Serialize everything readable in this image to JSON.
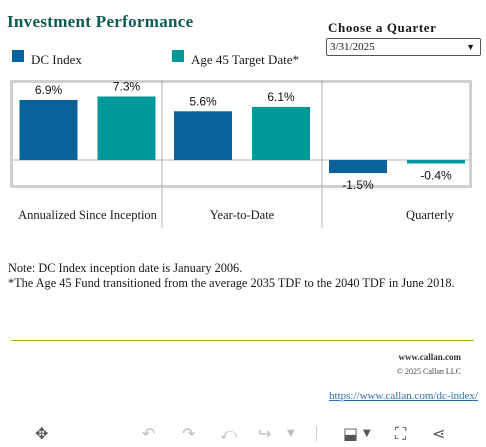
{
  "header": {
    "title": "Investment Performance",
    "quarter_label": "Choose a Quarter",
    "quarter_value": "3/31/2025"
  },
  "legend": [
    {
      "label": "DC Index",
      "color": "#0a629b"
    },
    {
      "label": "Age 45 Target Date*",
      "color": "#00999a"
    }
  ],
  "chart_data": {
    "type": "bar",
    "categories": [
      "Annualized Since Inception",
      "Year-to-Date",
      "Quarterly"
    ],
    "series": [
      {
        "name": "DC Index",
        "values": [
          6.9,
          5.6,
          -1.5
        ],
        "color": "#0a629b"
      },
      {
        "name": "Age 45 Target Date*",
        "values": [
          7.3,
          6.1,
          -0.4
        ],
        "color": "#00999a"
      }
    ],
    "data_labels": [
      [
        "6.9%",
        "5.6%",
        "-1.5%"
      ],
      [
        "7.3%",
        "6.1%",
        "-0.4%"
      ]
    ],
    "ylim": [
      -2.5,
      10.0
    ],
    "grid": false,
    "legend_position": "top-left"
  },
  "notes": {
    "line1": "Note: DC Index inception date is January 2006.",
    "line2": "*The Age 45 Fund transitioned from the average 2035 TDF to the 2040 TDF in June 2018."
  },
  "footer": {
    "site": "www.callan.com",
    "copyright": "© 2025 Callan LLC",
    "link": "https://www.callan.com/dc-index/"
  },
  "toolbar_icons": [
    "move-icon",
    "undo-icon",
    "redo-icon",
    "revert-icon",
    "forward-icon",
    "chevron-down-icon",
    "download-icon",
    "chevron-down-icon",
    "fullscreen-icon",
    "share-icon"
  ]
}
